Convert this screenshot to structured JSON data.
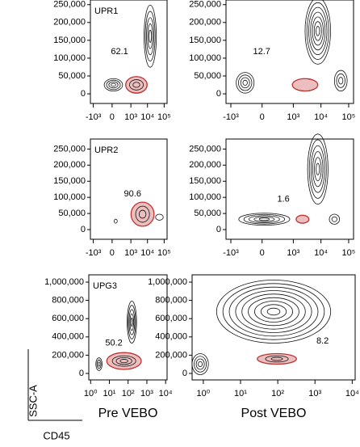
{
  "chart_data": [
    {
      "type": "contour",
      "label": "UPR1",
      "annotation": 62.1,
      "xscale": "biex",
      "xlim": [
        -1500,
        150000
      ],
      "xticks": [
        {
          "value": -1000,
          "label": "-10³"
        },
        0,
        {
          "value": 1000,
          "label": "10³"
        },
        {
          "value": 10000,
          "label": "10⁴"
        },
        {
          "value": 100000,
          "label": "10⁵"
        }
      ],
      "ylim": [
        -27000,
        263000
      ],
      "yticks": [
        0,
        {
          "value": 50000,
          "label": "50,000"
        },
        {
          "value": 100000,
          "label": "100,000"
        },
        {
          "value": 150000,
          "label": "150,000"
        },
        {
          "value": 200000,
          "label": "200,000"
        },
        {
          "value": 250000,
          "label": "250,000"
        }
      ]
    },
    {
      "type": "contour",
      "annotation": 12.7,
      "xscale": "biex",
      "xlim": [
        -1500,
        150000
      ],
      "xticks": [
        {
          "value": -1000,
          "label": "-10³"
        },
        0,
        {
          "value": 1000,
          "label": "10³"
        },
        {
          "value": 10000,
          "label": "10⁴"
        },
        {
          "value": 100000,
          "label": "10⁵"
        }
      ],
      "ylim": [
        -27000,
        263000
      ],
      "yticks": [
        0,
        {
          "value": 50000,
          "label": "50,000"
        },
        {
          "value": 100000,
          "label": "100,000"
        },
        {
          "value": 150000,
          "label": "150,000"
        },
        {
          "value": 200000,
          "label": "200,000"
        },
        {
          "value": 250000,
          "label": "250,000"
        }
      ]
    },
    {
      "type": "contour",
      "label": "UPR2",
      "annotation": 90.6,
      "xscale": "biex",
      "xlim": [
        -1500,
        150000
      ],
      "xticks": [
        {
          "value": -1000,
          "label": "-10³"
        },
        0,
        {
          "value": 1000,
          "label": "10³"
        },
        {
          "value": 10000,
          "label": "10⁴"
        },
        {
          "value": 100000,
          "label": "10⁵"
        }
      ],
      "ylim": [
        -30000,
        281000
      ],
      "yticks": [
        0,
        {
          "value": 50000,
          "label": "50,000"
        },
        {
          "value": 100000,
          "label": "100,000"
        },
        {
          "value": 150000,
          "label": "150,000"
        },
        {
          "value": 200000,
          "label": "200,000"
        },
        {
          "value": 250000,
          "label": "250,000"
        }
      ]
    },
    {
      "type": "contour",
      "annotation": 1.6,
      "xscale": "biex",
      "xlim": [
        -1500,
        150000
      ],
      "xticks": [
        {
          "value": -1000,
          "label": "-10³"
        },
        0,
        {
          "value": 1000,
          "label": "10³"
        },
        {
          "value": 10000,
          "label": "10⁴"
        },
        {
          "value": 100000,
          "label": "10⁵"
        }
      ],
      "ylim": [
        -30000,
        281000
      ],
      "yticks": [
        0,
        {
          "value": 50000,
          "label": "50,000"
        },
        {
          "value": 100000,
          "label": "100,000"
        },
        {
          "value": 150000,
          "label": "150,000"
        },
        {
          "value": 200000,
          "label": "200,000"
        },
        {
          "value": 250000,
          "label": "250,000"
        }
      ]
    },
    {
      "type": "contour",
      "label": "UPG3",
      "annotation": 50.2,
      "xscale": "log",
      "xlabel": "Pre VEBO",
      "xlim": [
        0.8,
        12000
      ],
      "xticks": [
        {
          "value": 1,
          "label": "10⁰"
        },
        {
          "value": 10,
          "label": "10¹"
        },
        {
          "value": 100,
          "label": "10²"
        },
        {
          "value": 1000,
          "label": "10³"
        },
        {
          "value": 10000,
          "label": "10⁴"
        }
      ],
      "ylim": [
        -71000,
        1080000
      ],
      "yticks": [
        0,
        {
          "value": 200000,
          "label": "200,000"
        },
        {
          "value": 400000,
          "label": "400,000"
        },
        {
          "value": 600000,
          "label": "600,000"
        },
        {
          "value": 800000,
          "label": "800,000"
        },
        {
          "value": 1000000,
          "label": "1,000,000"
        }
      ]
    },
    {
      "type": "contour",
      "annotation": 8.2,
      "xscale": "log",
      "xlabel": "Post VEBO",
      "xlim": [
        0.5,
        12000
      ],
      "xticks": [
        {
          "value": 1,
          "label": "10⁰"
        },
        {
          "value": 10,
          "label": "10¹"
        },
        {
          "value": 100,
          "label": "10²"
        },
        {
          "value": 1000,
          "label": "10³"
        },
        {
          "value": 10000,
          "label": "10⁴"
        }
      ],
      "ylim": [
        -71000,
        1080000
      ],
      "yticks": [
        0,
        {
          "value": 200000,
          "label": "200,000"
        },
        {
          "value": 400000,
          "label": "400,000"
        },
        {
          "value": 600000,
          "label": "600,000"
        },
        {
          "value": 800000,
          "label": "800,000"
        },
        {
          "value": 1000000,
          "label": "1,000,000"
        }
      ]
    }
  ],
  "axes_key": {
    "y": "SSC-A",
    "x": "CD45"
  }
}
